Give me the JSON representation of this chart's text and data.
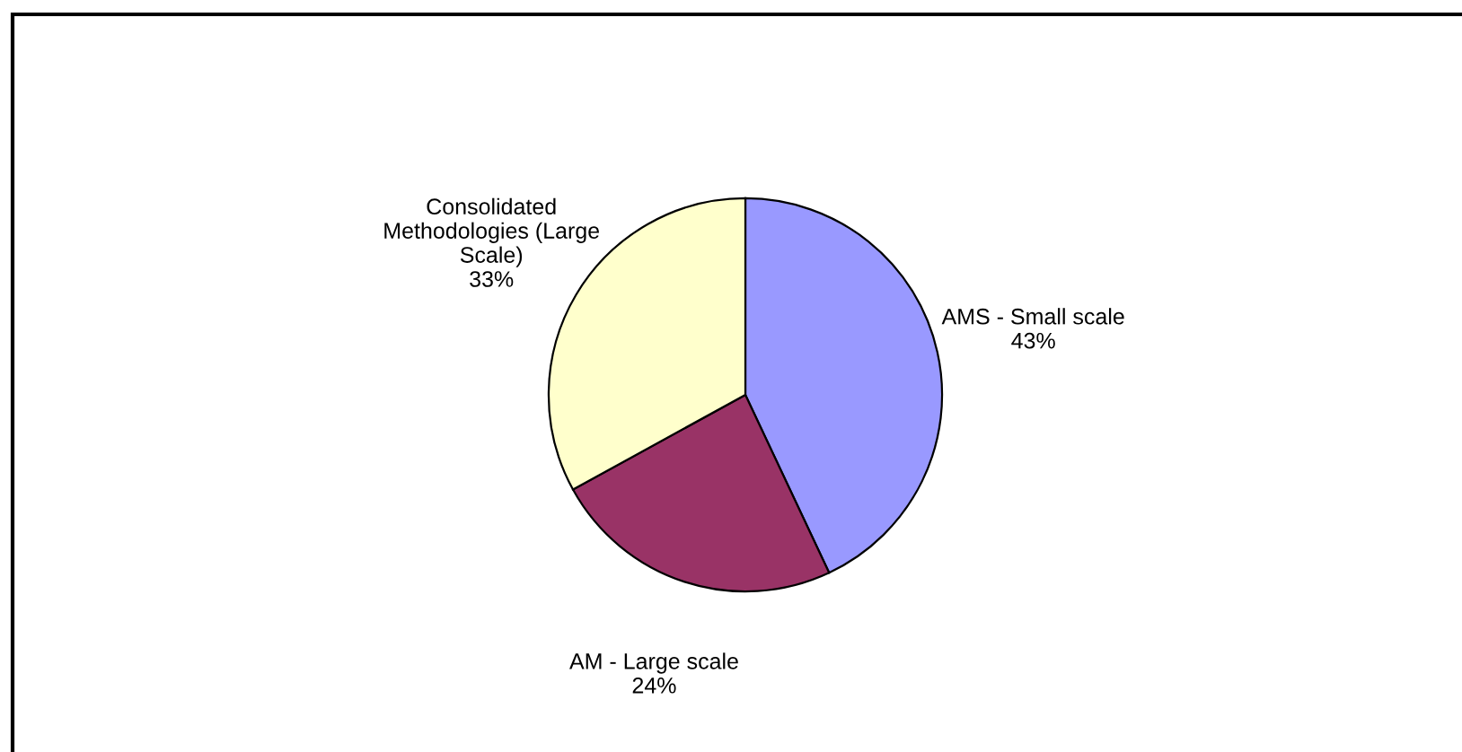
{
  "chart_data": {
    "type": "pie",
    "categories": [
      "AMS - Small scale",
      "AM - Large scale",
      "Consolidated\nMethodologies (Large\nScale)"
    ],
    "values": [
      43,
      24,
      33
    ],
    "colors": [
      "#9999ff",
      "#993366",
      "#ffffcc"
    ],
    "value_labels": [
      "43%",
      "24%",
      "33%"
    ]
  }
}
